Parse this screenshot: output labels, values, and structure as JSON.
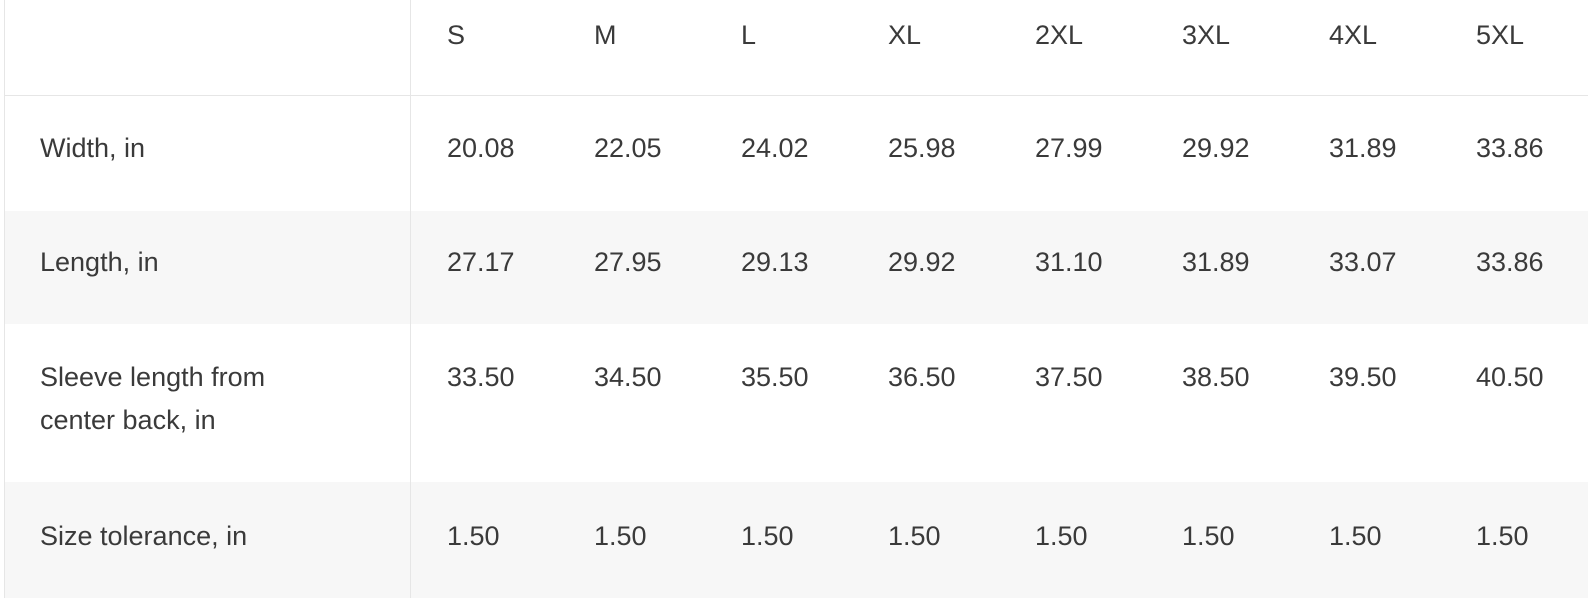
{
  "table": {
    "sizes": [
      "S",
      "M",
      "L",
      "XL",
      "2XL",
      "3XL",
      "4XL",
      "5XL"
    ],
    "rows": [
      {
        "label": "Width, in",
        "values": [
          "20.08",
          "22.05",
          "24.02",
          "25.98",
          "27.99",
          "29.92",
          "31.89",
          "33.86"
        ]
      },
      {
        "label": "Length, in",
        "values": [
          "27.17",
          "27.95",
          "29.13",
          "29.92",
          "31.10",
          "31.89",
          "33.07",
          "33.86"
        ]
      },
      {
        "label_line1": "Sleeve length from",
        "label_line2": "center back, in",
        "values": [
          "33.50",
          "34.50",
          "35.50",
          "36.50",
          "37.50",
          "38.50",
          "39.50",
          "40.50"
        ]
      },
      {
        "label": "Size tolerance, in",
        "values": [
          "1.50",
          "1.50",
          "1.50",
          "1.50",
          "1.50",
          "1.50",
          "1.50",
          "1.50"
        ]
      }
    ]
  },
  "colors": {
    "text": "#3a3a3a",
    "border": "#e6e6e6",
    "stripe": "#f7f7f7",
    "background": "#ffffff"
  }
}
